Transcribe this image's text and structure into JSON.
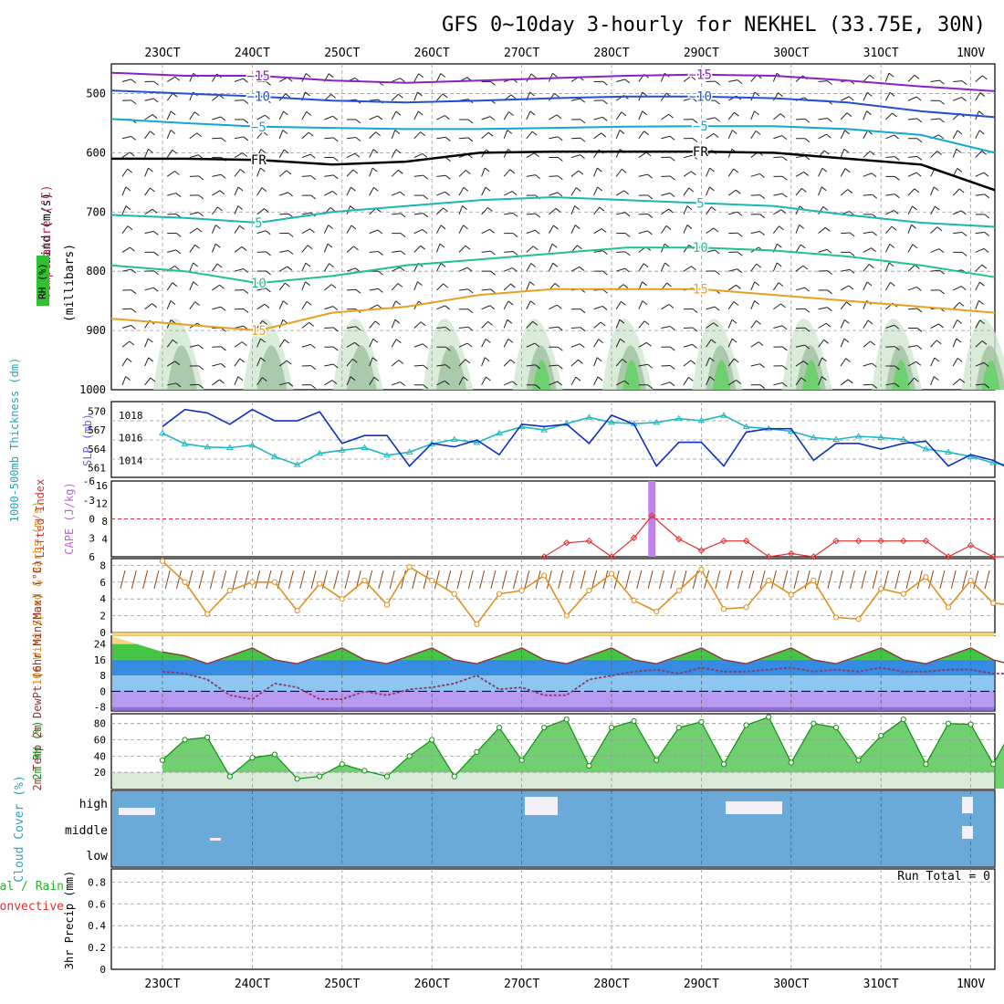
{
  "title": "GFS 0~10day 3-hourly for NEKHEL (33.75E, 30N)",
  "dates": [
    "23OCT",
    "24OCT",
    "25OCT",
    "26OCT",
    "27OCT",
    "28OCT",
    "29OCT",
    "30OCT",
    "31OCT",
    "1NOV"
  ],
  "chart_data": [
    {
      "panel": "upper_air",
      "type": "heatmap",
      "ylabel_parts": [
        "RH (%)",
        "Temperature (°C)",
        "Wind (m/s)",
        "(millibars)"
      ],
      "yticks": [
        500,
        600,
        700,
        800,
        900,
        1000
      ],
      "ylim": [
        1000,
        450
      ],
      "freezing_label": "FR",
      "isotherms": [
        {
          "temp": -15,
          "color": "#8B1FC8",
          "pressure": [
            465,
            470,
            470,
            478,
            482,
            478,
            474,
            470,
            468,
            470,
            478,
            488,
            496
          ]
        },
        {
          "temp": -10,
          "color": "#2050D8",
          "pressure": [
            495,
            500,
            505,
            512,
            515,
            512,
            508,
            505,
            505,
            508,
            515,
            530,
            540
          ]
        },
        {
          "temp": -5,
          "color": "#10A8D8",
          "pressure": [
            543,
            550,
            556,
            558,
            560,
            560,
            558,
            556,
            555,
            555,
            560,
            570,
            600
          ]
        },
        {
          "temp": 0,
          "color": "#000000",
          "pressure": [
            610,
            610,
            612,
            620,
            615,
            600,
            598,
            598,
            598,
            600,
            610,
            620,
            663
          ]
        },
        {
          "temp": 5,
          "color": "#18B8B0",
          "pressure": [
            705,
            710,
            718,
            700,
            690,
            680,
            675,
            680,
            685,
            690,
            705,
            718,
            725
          ]
        },
        {
          "temp": 10,
          "color": "#20C090",
          "pressure": [
            790,
            800,
            820,
            808,
            790,
            780,
            770,
            760,
            760,
            765,
            775,
            790,
            810
          ]
        },
        {
          "temp": 15,
          "color": "#E8A020",
          "pressure": [
            880,
            890,
            900,
            870,
            860,
            840,
            830,
            830,
            830,
            840,
            850,
            860,
            870
          ]
        }
      ]
    },
    {
      "panel": "thickness_slp",
      "type": "line",
      "ylabel_left": "1000-500mb Thickness (dm)",
      "ylabel_right": "SLP (mb)",
      "yticks_left": [
        561,
        564,
        567,
        570
      ],
      "yticks_right": [
        1014,
        1016,
        1018
      ],
      "series": [
        {
          "name": "SLP (mb)",
          "color": "#1030C0",
          "x": [
            0,
            0.25,
            0.5,
            0.75,
            1,
            1.25,
            1.5,
            1.75,
            2,
            2.25,
            2.5,
            2.75,
            3,
            3.25,
            3.5,
            3.75,
            4,
            4.25,
            4.5,
            4.75,
            5,
            5.25,
            5.5,
            5.75,
            6,
            6.25,
            6.5,
            6.75,
            7,
            7.25,
            7.5,
            7.75,
            8,
            8.25,
            8.5,
            8.75,
            9,
            9.25,
            9.5,
            9.75,
            10.1
          ],
          "values": [
            1017.0,
            1018.5,
            1018.2,
            1017.2,
            1018.5,
            1017.5,
            1017.5,
            1018.3,
            1015.5,
            1016.2,
            1016.2,
            1013.5,
            1015.5,
            1015.2,
            1015.8,
            1014.5,
            1017.2,
            1017.0,
            1017.2,
            1015.5,
            1018.0,
            1017.2,
            1013.5,
            1015.6,
            1015.6,
            1013.5,
            1016.5,
            1016.8,
            1016.8,
            1014.0,
            1015.5,
            1015.5,
            1015.0,
            1015.5,
            1015.7,
            1013.5,
            1014.5,
            1014.0,
            1013.0,
            1014.0,
            1014.2
          ]
        },
        {
          "name": "1000-500mb Thickness (dm)",
          "color": "#20B8C0",
          "x": [
            0,
            0.25,
            0.5,
            0.75,
            1,
            1.25,
            1.5,
            1.75,
            2,
            2.25,
            2.5,
            2.75,
            3,
            3.25,
            3.5,
            3.75,
            4,
            4.25,
            4.5,
            4.75,
            5,
            5.25,
            5.5,
            5.75,
            6,
            6.25,
            6.5,
            6.75,
            7,
            7.25,
            7.5,
            7.75,
            8,
            8.25,
            8.5,
            8.75,
            9,
            9.25,
            9.5,
            9.75,
            10.1
          ],
          "values": [
            566.5,
            564.8,
            564.3,
            564.2,
            564.6,
            562.8,
            561.5,
            563.3,
            563.8,
            564.2,
            563.0,
            563.5,
            564.8,
            565.5,
            565.0,
            566.5,
            567.5,
            567.0,
            568.0,
            569.0,
            568.2,
            568.0,
            568.2,
            568.8,
            568.5,
            569.3,
            567.5,
            567.2,
            566.8,
            565.8,
            565.5,
            566.0,
            565.8,
            565.5,
            564.0,
            563.5,
            562.8,
            561.8,
            561.2,
            560.8,
            560.2
          ]
        }
      ]
    },
    {
      "panel": "lifted_cape",
      "type": "line",
      "ylabel_left": "Lifted Index",
      "ylabel_right": "CAPE (J/kg)",
      "yticks_left": [
        -6,
        -3,
        0,
        3,
        6
      ],
      "yticks_right": [
        4,
        8,
        12,
        16
      ],
      "cape_bar": {
        "x": 5.45,
        "value": 17
      },
      "series": [
        {
          "name": "Lifted Index",
          "color": "#E03030",
          "x": [
            4.25,
            4.5,
            4.75,
            5,
            5.25,
            5.45,
            5.75,
            6,
            6.25,
            6.5,
            6.75,
            7,
            7.25,
            7.5,
            7.75,
            8,
            8.25,
            8.5,
            8.75,
            9,
            9.25,
            9.5,
            9.75,
            10.1
          ],
          "values": [
            6,
            3.8,
            3.5,
            6,
            3,
            -0.5,
            3.2,
            5,
            3.5,
            3.5,
            6,
            5.5,
            6,
            3.5,
            3.5,
            3.5,
            3.5,
            3.5,
            6,
            4.2,
            6,
            6,
            6,
            3.8
          ]
        }
      ]
    },
    {
      "panel": "wind10m",
      "type": "line",
      "ylabel": "10m Wind Speed & Barbs (m/s)",
      "yticks": [
        0,
        2,
        4,
        6,
        8
      ],
      "series": [
        {
          "name": "10m Wind Speed",
          "color": "#E09020",
          "x": [
            0,
            0.25,
            0.5,
            0.75,
            1,
            1.25,
            1.5,
            1.75,
            2,
            2.25,
            2.5,
            2.75,
            3,
            3.25,
            3.5,
            3.75,
            4,
            4.25,
            4.5,
            4.75,
            5,
            5.25,
            5.5,
            5.75,
            6,
            6.25,
            6.5,
            6.75,
            7,
            7.25,
            7.5,
            7.75,
            8,
            8.25,
            8.5,
            8.75,
            9,
            9.25,
            9.5,
            9.75,
            10.1
          ],
          "values": [
            8.5,
            6.0,
            2.2,
            5.0,
            6.0,
            6.0,
            2.6,
            5.8,
            4.0,
            6.2,
            3.3,
            7.8,
            6.2,
            4.6,
            1.0,
            4.6,
            5.0,
            6.8,
            2.0,
            5.0,
            7.0,
            3.8,
            2.5,
            5.0,
            7.5,
            2.8,
            3.0,
            6.2,
            4.5,
            6.2,
            1.8,
            1.6,
            5.2,
            4.6,
            6.6,
            3.0,
            6.2,
            3.5,
            3.2,
            7.2,
            2.5
          ]
        }
      ]
    },
    {
      "panel": "temp_dewpt",
      "type": "line",
      "ylabel": "2m Temp 2m DewPt (6hr Min/Max) (°C)",
      "yticks": [
        -8,
        0,
        8,
        16,
        24
      ],
      "series": [
        {
          "name": "2m Temp",
          "color": "#8B3A3A",
          "x": [
            0,
            0.25,
            0.5,
            0.75,
            1,
            1.25,
            1.5,
            1.75,
            2,
            2.25,
            2.5,
            2.75,
            3,
            3.25,
            3.5,
            3.75,
            4,
            4.25,
            4.5,
            4.75,
            5,
            5.25,
            5.5,
            5.75,
            6,
            6.25,
            6.5,
            6.75,
            7,
            7.25,
            7.5,
            7.75,
            8,
            8.25,
            8.5,
            8.75,
            9,
            9.25,
            9.5,
            9.75,
            10.1
          ],
          "values": [
            20,
            18,
            14,
            18,
            22,
            16,
            14,
            18,
            22,
            16,
            14,
            18,
            22,
            16,
            14,
            18,
            22,
            16,
            14,
            18,
            22,
            16,
            14,
            18,
            22,
            16,
            14,
            18,
            22,
            16,
            14,
            18,
            22,
            16,
            14,
            18,
            22,
            16,
            13,
            12,
            16
          ]
        },
        {
          "name": "2m DewPt",
          "color": "#8B3A6A",
          "x": [
            0,
            0.25,
            0.5,
            0.75,
            1,
            1.25,
            1.5,
            1.75,
            2,
            2.25,
            2.5,
            2.75,
            3,
            3.25,
            3.5,
            3.75,
            4,
            4.25,
            4.5,
            4.75,
            5,
            5.25,
            5.5,
            5.75,
            6,
            6.25,
            6.5,
            6.75,
            7,
            7.25,
            7.5,
            7.75,
            8,
            8.25,
            8.5,
            8.75,
            9,
            9.25,
            9.5,
            9.75,
            10.1
          ],
          "values": [
            10,
            9,
            6,
            -2,
            -4,
            4,
            2,
            -4,
            -4,
            0,
            -2,
            1,
            2,
            4,
            8,
            1,
            2,
            -2,
            -2,
            6,
            8,
            10,
            11,
            9,
            12,
            10,
            10,
            11,
            12,
            10,
            11,
            10,
            12,
            10,
            10,
            11,
            11,
            9,
            9,
            10,
            10
          ]
        }
      ]
    },
    {
      "panel": "rh2m",
      "type": "area",
      "ylabel": "2m RH (%)",
      "yticks": [
        20,
        40,
        60,
        80
      ],
      "series": [
        {
          "name": "2m RH",
          "color": "#109010",
          "x": [
            0,
            0.25,
            0.5,
            0.75,
            1,
            1.25,
            1.5,
            1.75,
            2,
            2.25,
            2.5,
            2.75,
            3,
            3.25,
            3.5,
            3.75,
            4,
            4.25,
            4.5,
            4.75,
            5,
            5.25,
            5.5,
            5.75,
            6,
            6.25,
            6.5,
            6.75,
            7,
            7.25,
            7.5,
            7.75,
            8,
            8.25,
            8.5,
            8.75,
            9,
            9.25,
            9.5,
            9.75,
            10.1
          ],
          "values": [
            35,
            60,
            63,
            15,
            38,
            42,
            12,
            15,
            30,
            22,
            15,
            40,
            60,
            15,
            45,
            75,
            35,
            75,
            85,
            28,
            75,
            83,
            35,
            75,
            82,
            30,
            78,
            88,
            32,
            80,
            75,
            35,
            65,
            85,
            30,
            80,
            79,
            30,
            80,
            78,
            65
          ]
        }
      ]
    },
    {
      "panel": "cloud_cover",
      "type": "bar",
      "ylabel": "Cloud Cover (%)",
      "levels": [
        "high",
        "middle",
        "low"
      ],
      "background_color": "#6BAAD8"
    },
    {
      "panel": "precip",
      "type": "bar",
      "ylabel_left": "Total / Rain Convective",
      "ylabel": "3hr Precip (mm)",
      "yticks": [
        0,
        0.2,
        0.4,
        0.6,
        0.8
      ],
      "run_total": "Run Total = 0"
    }
  ]
}
